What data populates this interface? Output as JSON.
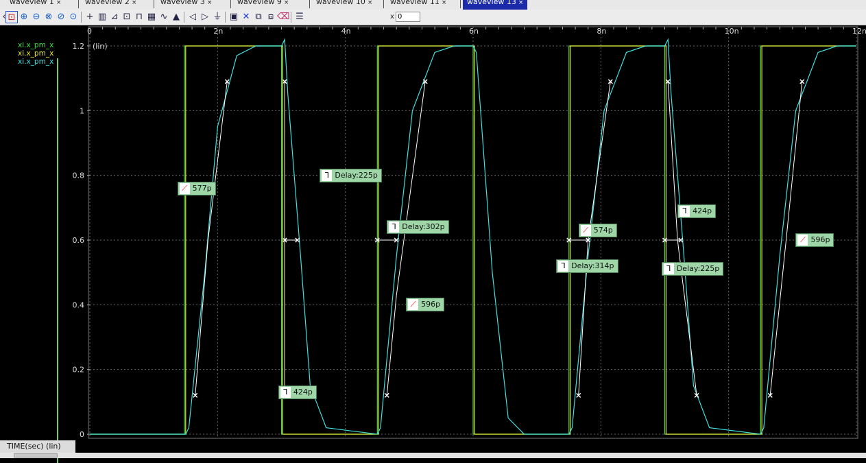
{
  "tabs": [
    {
      "label": "waveview 1",
      "close": "×"
    },
    {
      "label": "waveview 2",
      "close": "×"
    },
    {
      "label": "waveview 3",
      "close": "×"
    },
    {
      "label": "waveview 9",
      "close": "×"
    },
    {
      "label": "waveview 10",
      "close": "×"
    },
    {
      "label": "waveview 11",
      "close": "×"
    },
    {
      "label": "waveview 13",
      "close": "×"
    }
  ],
  "toolbar": {
    "icons": [
      "zoom-fit-icon",
      "zoom-in-icon",
      "zoom-out-icon",
      "zoom-x-icon",
      "zoom-y-icon",
      "zoom-box-icon",
      "cursor-icon",
      "bars-icon",
      "measure-icon",
      "marker-icon",
      "pulse-icon",
      "grid-icon",
      "wave-icon",
      "chart-icon",
      "prev-edge-icon",
      "next-edge-icon",
      "edge-icon",
      "save-icon",
      "delete-icon",
      "copy-icon",
      "paste-icon",
      "eraser-icon",
      "layout-icon"
    ],
    "x_label": "x",
    "x_value": "0"
  },
  "legend": [
    {
      "name": "xi.x_pm_x",
      "color": "#3fe03f"
    },
    {
      "name": "xi.x_pm_x",
      "color": "#e6e63a"
    },
    {
      "name": "xi.x_pm_x",
      "color": "#3fe0e0"
    }
  ],
  "axis_bottom_label": "TIME(sec) (lin)",
  "chart_data": {
    "type": "line",
    "y_unit_label": "(lin)",
    "x_ticks": [
      "0",
      "2n",
      "4n",
      "6n",
      "8n",
      "10n",
      "12n"
    ],
    "y_ticks": [
      "0",
      "0.2",
      "0.4",
      "0.6",
      "0.8",
      "1",
      "1.2"
    ],
    "xlim_ns": [
      0,
      12
    ],
    "ylim": [
      0,
      1.2
    ],
    "grid": true,
    "series": [
      {
        "name": "xi.x_pm_x",
        "color": "#3fe03f",
        "kind": "square",
        "edges_ns": [
          1.48,
          3.0,
          4.5,
          6.0,
          7.5,
          9.0,
          10.5
        ],
        "start_level": 0
      },
      {
        "name": "xi.x_pm_x",
        "color": "#e6e63a",
        "kind": "square",
        "edges_ns": [
          1.5,
          3.02,
          4.52,
          6.02,
          7.52,
          9.02,
          10.52
        ],
        "start_level": 0
      },
      {
        "name": "xi.x_pm_x",
        "color": "#3fe0e0",
        "kind": "smooth",
        "points_ns": [
          [
            0,
            0
          ],
          [
            1.5,
            0
          ],
          [
            1.55,
            0.02
          ],
          [
            1.8,
            0.5
          ],
          [
            2.0,
            0.95
          ],
          [
            2.3,
            1.17
          ],
          [
            2.6,
            1.2
          ],
          [
            3.0,
            1.2
          ],
          [
            3.05,
            1.22
          ],
          [
            3.1,
            1.05
          ],
          [
            3.3,
            0.55
          ],
          [
            3.45,
            0.15
          ],
          [
            3.7,
            0.02
          ],
          [
            4.5,
            0
          ],
          [
            4.55,
            0.02
          ],
          [
            4.8,
            0.55
          ],
          [
            5.05,
            1.0
          ],
          [
            5.4,
            1.18
          ],
          [
            5.7,
            1.2
          ],
          [
            6.0,
            1.2
          ],
          [
            6.05,
            1.18
          ],
          [
            6.3,
            0.5
          ],
          [
            6.55,
            0.05
          ],
          [
            6.8,
            0
          ],
          [
            7.5,
            0
          ],
          [
            7.55,
            0.02
          ],
          [
            7.8,
            0.55
          ],
          [
            8.05,
            1.0
          ],
          [
            8.4,
            1.18
          ],
          [
            8.7,
            1.2
          ],
          [
            9.0,
            1.2
          ],
          [
            9.05,
            1.22
          ],
          [
            9.1,
            1.05
          ],
          [
            9.3,
            0.55
          ],
          [
            9.45,
            0.15
          ],
          [
            9.7,
            0.02
          ],
          [
            10.5,
            0
          ],
          [
            10.55,
            0.02
          ],
          [
            10.8,
            0.55
          ],
          [
            11.05,
            1.0
          ],
          [
            11.4,
            1.18
          ],
          [
            11.7,
            1.2
          ],
          [
            12.0,
            1.2
          ]
        ]
      }
    ],
    "markers": [
      {
        "type": "rise",
        "text": "577p",
        "x_ns": 1.37,
        "y": 0.76,
        "lines": [
          [
            1.65,
            0.12
          ],
          [
            2.15,
            1.09
          ]
        ],
        "anchor_ns": [
          1.85,
          0.6
        ]
      },
      {
        "type": "fall",
        "text": "Delay:225p",
        "x_ns": 3.6,
        "y": 0.8,
        "lines": [
          [
            3.05,
            0.6
          ],
          [
            3.25,
            0.6
          ]
        ],
        "anchor_ns": [
          3.25,
          0.6
        ]
      },
      {
        "type": "fall",
        "text": "424p",
        "x_ns": 2.95,
        "y": 0.13,
        "lines": [
          [
            3.05,
            1.09
          ],
          [
            3.5,
            0.12
          ]
        ],
        "anchor_ns": [
          3.05,
          0.12
        ]
      },
      {
        "type": "fall",
        "text": "Delay:302p",
        "x_ns": 4.65,
        "y": 0.64,
        "lines": [
          [
            4.5,
            0.6
          ],
          [
            4.8,
            0.6
          ]
        ],
        "anchor_ns": [
          4.8,
          0.6
        ]
      },
      {
        "type": "rise",
        "text": "596p",
        "x_ns": 4.95,
        "y": 0.4,
        "lines": [
          [
            4.65,
            0.12
          ],
          [
            5.25,
            1.09
          ]
        ],
        "anchor_ns": [
          4.8,
          0.43
        ]
      },
      {
        "type": "rise",
        "text": "574p",
        "x_ns": 7.65,
        "y": 0.63,
        "lines": [
          [
            7.65,
            0.12
          ],
          [
            8.15,
            1.09
          ]
        ],
        "anchor_ns": [
          7.8,
          0.6
        ]
      },
      {
        "type": "fall",
        "text": "Delay:314p",
        "x_ns": 7.3,
        "y": 0.52,
        "lines": [
          [
            7.5,
            0.6
          ],
          [
            7.8,
            0.6
          ]
        ],
        "anchor_ns": [
          7.55,
          0.6
        ]
      },
      {
        "type": "fall",
        "text": "424p",
        "x_ns": 9.2,
        "y": 0.69,
        "lines": [
          [
            9.05,
            1.09
          ],
          [
            9.5,
            0.12
          ]
        ],
        "anchor_ns": [
          9.2,
          0.6
        ]
      },
      {
        "type": "fall",
        "text": "Delay:225p",
        "x_ns": 8.95,
        "y": 0.51,
        "lines": [
          [
            9.0,
            0.6
          ],
          [
            9.25,
            0.6
          ]
        ],
        "anchor_ns": [
          9.0,
          0.6
        ]
      },
      {
        "type": "rise",
        "text": "596p",
        "x_ns": 11.05,
        "y": 0.6,
        "lines": [
          [
            10.65,
            0.12
          ],
          [
            11.15,
            1.09
          ]
        ],
        "anchor_ns": [
          10.9,
          0.6
        ]
      }
    ]
  }
}
